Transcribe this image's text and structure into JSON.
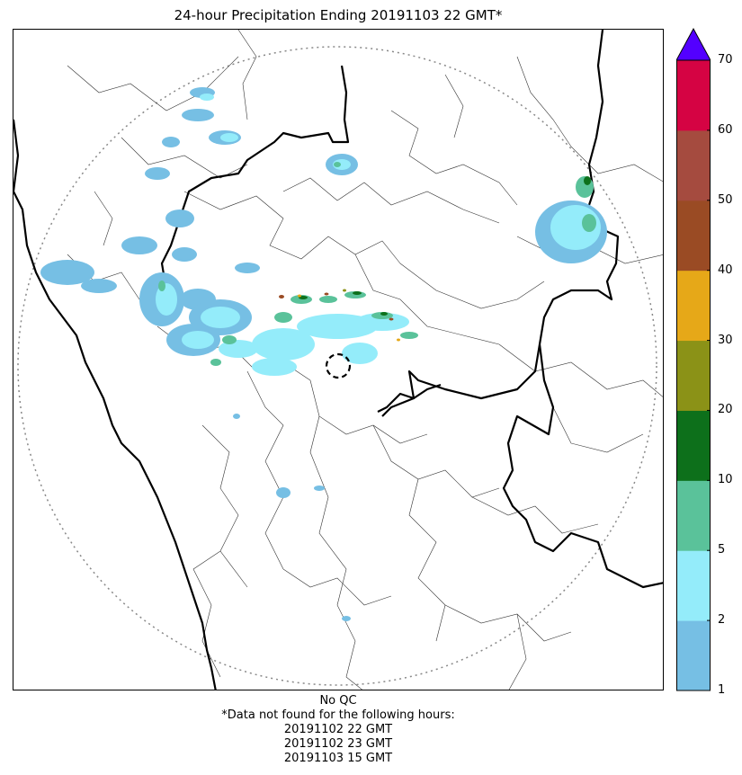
{
  "title": "24-hour Precipitation Ending 20191103 22 GMT*",
  "colorbar": {
    "ticks": [
      "1",
      "2",
      "5",
      "10",
      "20",
      "30",
      "40",
      "50",
      "60",
      "70"
    ],
    "bins": [
      {
        "from": "1",
        "to": "2",
        "color": "#76bfe4"
      },
      {
        "from": "2",
        "to": "5",
        "color": "#94ecfa"
      },
      {
        "from": "5",
        "to": "10",
        "color": "#5ac29a"
      },
      {
        "from": "10",
        "to": "20",
        "color": "#0d701b"
      },
      {
        "from": "20",
        "to": "30",
        "color": "#8b9217"
      },
      {
        "from": "30",
        "to": "40",
        "color": "#e6a818"
      },
      {
        "from": "40",
        "to": "50",
        "color": "#9a4b24"
      },
      {
        "from": "50",
        "to": "60",
        "color": "#a54b3f"
      },
      {
        "from": "60",
        "to": "70",
        "color": "#d50343"
      }
    ],
    "overflow_color": "#5300ff"
  },
  "footer": {
    "qc_status": "No QC",
    "missing_note": "*Data not found for the following hours:",
    "missing_hours": [
      "20191102 22 GMT",
      "20191102 23 GMT",
      "20191103 15 GMT"
    ]
  }
}
